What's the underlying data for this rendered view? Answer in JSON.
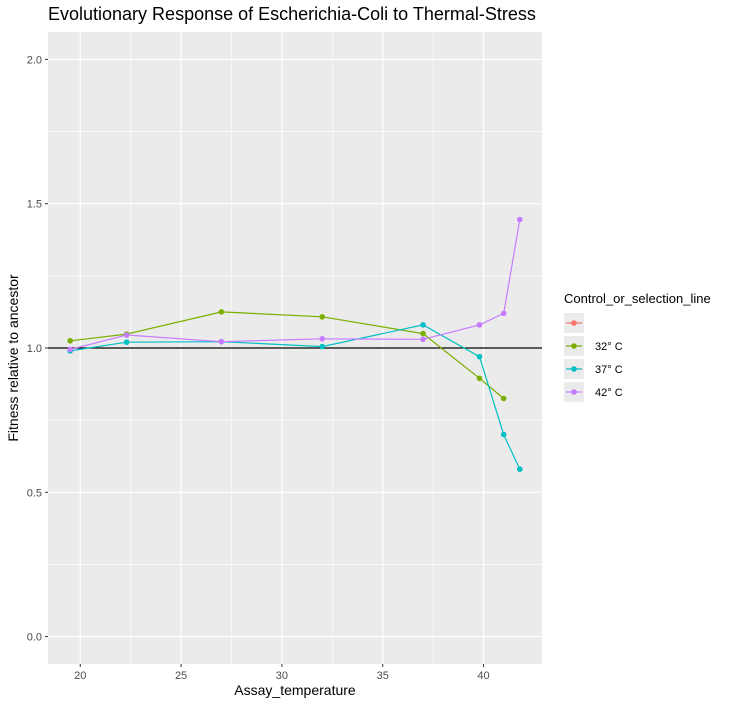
{
  "chart_data": {
    "type": "line",
    "title": "Evolutionary Response of Escherichia-Coli to Thermal-Stress",
    "xlabel": "Assay_temperature",
    "ylabel": "Fitness relative to ancestor",
    "xlim": [
      18.4,
      42.9
    ],
    "ylim": [
      -0.095,
      2.095
    ],
    "x_ticks": [
      20,
      25,
      30,
      35,
      40
    ],
    "y_ticks": [
      0.0,
      0.5,
      1.0,
      1.5,
      2.0
    ],
    "x_tick_labels": [
      "20",
      "25",
      "30",
      "35",
      "40"
    ],
    "y_tick_labels": [
      "0.0",
      "0.5",
      "1.0",
      "1.5",
      "2.0"
    ],
    "hline": 1.0,
    "grid": true,
    "legend_position": "right",
    "legend_title": "Control_or_selection_line",
    "colors": {
      "panel_bg": "#ebebeb",
      "grid": "#ffffff",
      "hline": "#000000",
      "tick_text": "#4d4d4d"
    },
    "series": [
      {
        "name": "",
        "color": "#f8766d",
        "x": [],
        "y": []
      },
      {
        "name": "32° C",
        "color": "#7cae00",
        "x": [
          19.5,
          22.3,
          27.0,
          32.0,
          37.0,
          39.8,
          41.0
        ],
        "y": [
          1.025,
          1.048,
          1.125,
          1.108,
          1.05,
          0.895,
          0.825
        ]
      },
      {
        "name": "37° C",
        "color": "#00bfc4",
        "x": [
          19.5,
          22.3,
          27.0,
          32.0,
          37.0,
          39.8,
          41.0,
          41.8
        ],
        "y": [
          0.99,
          1.02,
          1.022,
          1.005,
          1.08,
          0.97,
          0.7,
          0.58
        ]
      },
      {
        "name": "42° C",
        "color": "#c77cff",
        "x": [
          19.5,
          22.3,
          27.0,
          32.0,
          37.0,
          39.8,
          41.0,
          41.8
        ],
        "y": [
          0.995,
          1.045,
          1.022,
          1.032,
          1.03,
          1.08,
          1.12,
          1.445
        ]
      }
    ]
  }
}
